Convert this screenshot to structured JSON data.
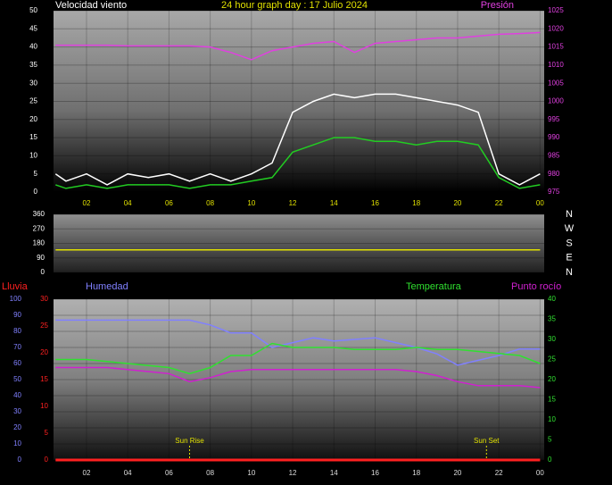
{
  "charts": [
    {
      "type": "line",
      "title": "24 hour graph day : 17 Julio 2024",
      "y_label": "Velocidad viento",
      "y2_label": "Presión",
      "x": [
        0.5,
        1,
        2,
        3,
        4,
        5,
        6,
        7,
        8,
        9,
        10,
        11,
        12,
        13,
        14,
        15,
        16,
        17,
        18,
        19,
        20,
        21,
        22,
        23,
        24
      ],
      "xlim": [
        0.4,
        24.2
      ],
      "xticks": [
        {
          "value": 2,
          "label": "02"
        },
        {
          "value": 4,
          "label": "04"
        },
        {
          "value": 6,
          "label": "06"
        },
        {
          "value": 8,
          "label": "08"
        },
        10,
        12,
        14,
        16,
        18,
        20,
        22,
        {
          "value": 24,
          "label": "00"
        }
      ],
      "ylim": [
        0,
        50
      ],
      "yticks": [
        0,
        5,
        10,
        15,
        20,
        25,
        30,
        35,
        40,
        45,
        50
      ],
      "y2lim": [
        975,
        1025
      ],
      "y2ticks": [
        975,
        980,
        985,
        990,
        995,
        1000,
        1005,
        1010,
        1015,
        1020,
        1025
      ],
      "series": [
        {
          "color": "#ffffff",
          "values": [
            5,
            3,
            5,
            2,
            5,
            4,
            5,
            3,
            5,
            3,
            5,
            8,
            22,
            25,
            27,
            26,
            27,
            27,
            26,
            25,
            24,
            22,
            5,
            2,
            5
          ]
        },
        {
          "color": "#22cc22",
          "values": [
            2,
            1,
            2,
            1,
            2,
            2,
            2,
            1,
            2,
            2,
            3,
            4,
            11,
            13,
            15,
            15,
            14,
            14,
            13,
            14,
            14,
            13,
            4,
            1,
            2
          ]
        },
        {
          "color": "#e040e0",
          "axis": "y2",
          "values": [
            1015.5,
            1015.5,
            1015.5,
            1015.5,
            1015.3,
            1015.3,
            1015.3,
            1015.3,
            1015,
            1013.5,
            1011.5,
            1014,
            1015,
            1016,
            1016.5,
            1013.5,
            1016,
            1016.5,
            1017,
            1017.5,
            1017.5,
            1018,
            1018.5,
            1018.7,
            1019
          ]
        }
      ]
    },
    {
      "type": "line",
      "compass_labels": [
        "N",
        "E",
        "S",
        "W",
        "N"
      ],
      "x": [
        0.5,
        1,
        2,
        3,
        4,
        5,
        6,
        7,
        8,
        9,
        10,
        11,
        12,
        13,
        14,
        15,
        16,
        17,
        18,
        19,
        20,
        21,
        22,
        23,
        24
      ],
      "xlim": [
        0.4,
        24.2
      ],
      "ylim": [
        0,
        360
      ],
      "yticks": [
        0,
        90,
        180,
        270,
        360
      ],
      "series": [
        {
          "color": "#e0e000",
          "values": [
            140,
            140,
            140,
            140,
            140,
            140,
            140,
            140,
            140,
            140,
            140,
            140,
            140,
            140,
            140,
            140,
            140,
            140,
            140,
            140,
            140,
            140,
            140,
            140,
            140
          ]
        }
      ]
    },
    {
      "type": "line",
      "x": [
        0.5,
        1,
        2,
        3,
        4,
        5,
        6,
        7,
        8,
        9,
        10,
        11,
        12,
        13,
        14,
        15,
        16,
        17,
        18,
        19,
        20,
        21,
        22,
        23,
        24
      ],
      "xlim": [
        0.4,
        24.2
      ],
      "xticks": [
        {
          "value": 2,
          "label": "02"
        },
        {
          "value": 4,
          "label": "04"
        },
        {
          "value": 6,
          "label": "06"
        },
        {
          "value": 8,
          "label": "08"
        },
        10,
        12,
        14,
        16,
        18,
        20,
        22,
        {
          "value": 24,
          "label": "00"
        }
      ],
      "ylim": [
        0,
        100
      ],
      "yticks": [
        0,
        10,
        20,
        30,
        40,
        50,
        60,
        70,
        80,
        90,
        100
      ],
      "y3lim": [
        0,
        30
      ],
      "y3ticks": [
        0,
        5,
        10,
        15,
        20,
        25,
        30
      ],
      "y2lim": [
        0,
        40
      ],
      "y2ticks": [
        0,
        5,
        10,
        15,
        20,
        25,
        30,
        35,
        40
      ],
      "annotations": [
        {
          "x": 7.0,
          "label": "Sun Rise"
        },
        {
          "x": 21.4,
          "label": "Sun Set"
        }
      ],
      "series": [
        {
          "name": "Lluvia",
          "color": "#ff2020",
          "axis": "y3",
          "values": [
            0,
            0,
            0,
            0,
            0,
            0,
            0,
            0,
            0,
            0,
            0,
            0,
            0,
            0,
            0,
            0,
            0,
            0,
            0,
            0,
            0,
            0,
            0,
            0,
            0
          ]
        },
        {
          "name": "Humedad",
          "color": "#8080ff",
          "values": [
            87,
            87,
            87,
            87,
            87,
            87,
            87,
            87,
            84,
            79,
            79,
            70,
            73,
            76,
            74,
            75,
            76,
            73,
            70,
            66,
            59,
            62,
            65,
            69,
            69
          ]
        },
        {
          "name": "Temperatura",
          "color": "#30e030",
          "axis": "y2",
          "values": [
            25,
            25,
            25,
            24.5,
            24,
            23.5,
            23,
            21.5,
            23,
            26,
            26,
            29,
            28,
            28,
            28,
            27.5,
            27.5,
            27.5,
            28,
            27.5,
            27.5,
            27,
            26.5,
            26,
            24
          ]
        },
        {
          "name": "Punto rocío",
          "color": "#d020d0",
          "axis": "y2",
          "values": [
            23,
            23,
            23,
            23,
            22.5,
            22,
            21.5,
            19.5,
            20.5,
            22,
            22.5,
            22.5,
            22.5,
            22.5,
            22.5,
            22.5,
            22.5,
            22.5,
            22,
            21,
            19.5,
            18.5,
            18.5,
            18.5,
            18
          ]
        }
      ]
    }
  ]
}
